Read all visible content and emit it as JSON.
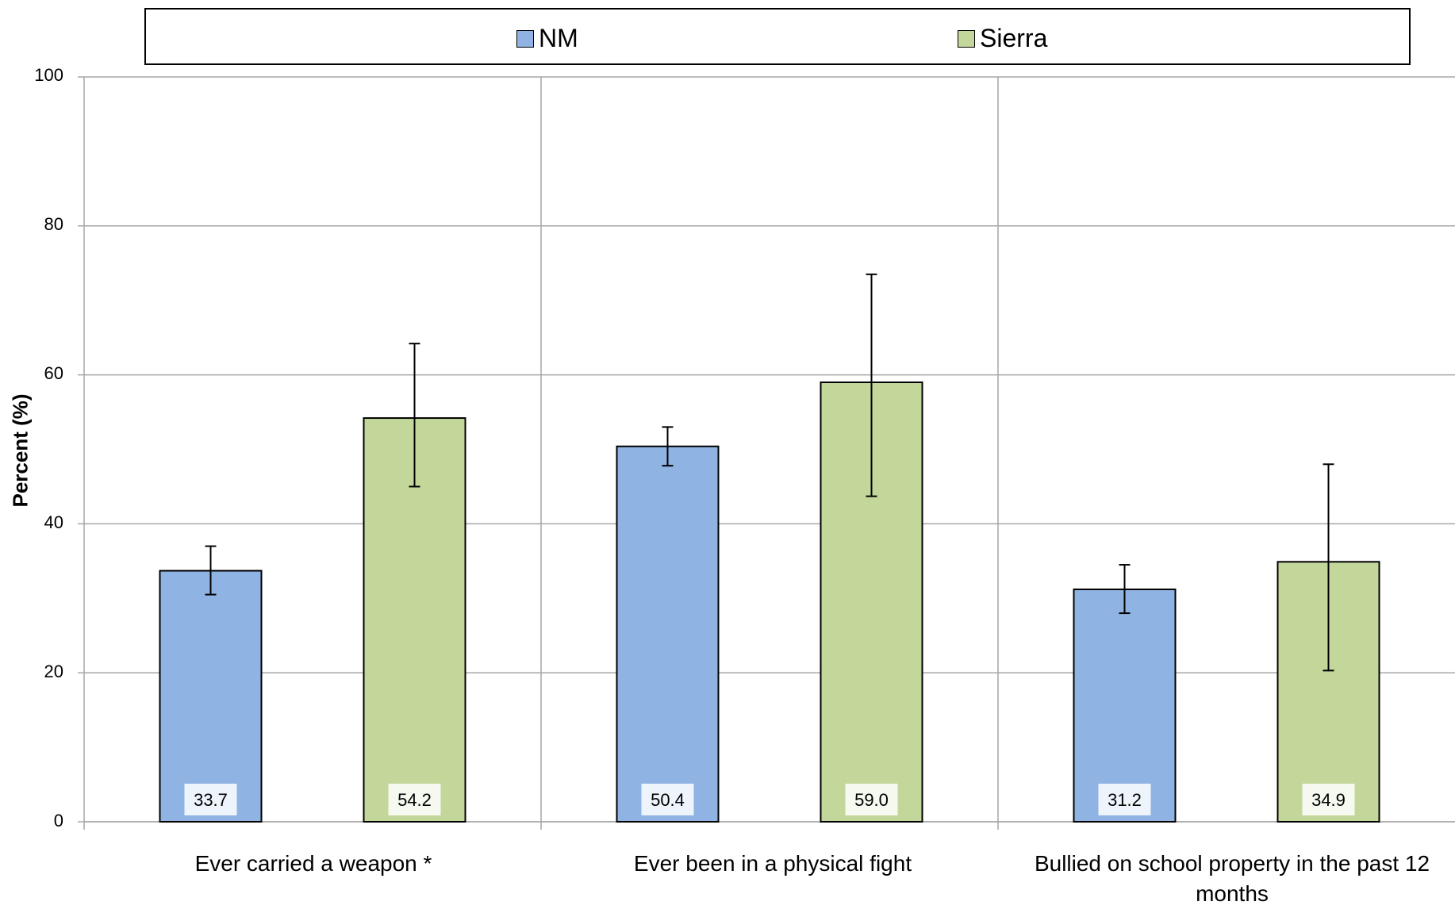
{
  "chart_data": {
    "type": "bar",
    "categories": [
      "Ever carried a weapon *",
      "Ever been in a physical fight",
      "Bullied on school property in the past 12 months"
    ],
    "series": [
      {
        "name": "NM",
        "color": "#8fb3e3",
        "values": [
          33.7,
          50.4,
          31.2
        ],
        "error_low": [
          30.5,
          47.8,
          28.0
        ],
        "error_high": [
          37.0,
          53.0,
          34.5
        ],
        "labels": [
          "33.7",
          "50.4",
          "31.2"
        ]
      },
      {
        "name": "Sierra",
        "color": "#c4d79b",
        "values": [
          54.2,
          59.0,
          34.9
        ],
        "error_low": [
          45.0,
          43.7,
          20.3
        ],
        "error_high": [
          64.2,
          73.5,
          48.0
        ],
        "labels": [
          "54.2",
          "59.0",
          "34.9"
        ]
      }
    ],
    "ylabel": "Percent (%)",
    "ylim": [
      0,
      100
    ],
    "yticks": [
      "0",
      "20",
      "40",
      "60",
      "80",
      "100"
    ],
    "grid": true,
    "legend_position": "top"
  }
}
